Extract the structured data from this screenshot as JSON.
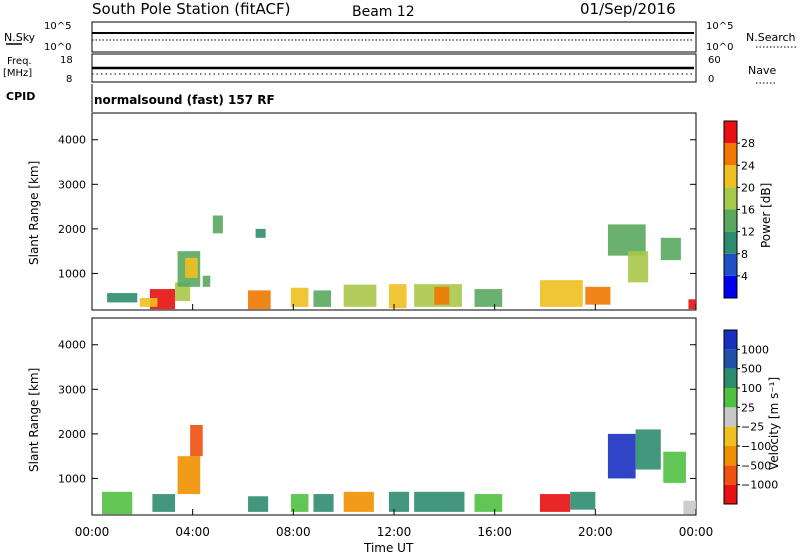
{
  "header": {
    "station_title": "South Pole Station (fitACF)",
    "beam": "Beam 12",
    "date": "01/Sep/2016"
  },
  "top_panels": {
    "nsky_label": "N.Sky",
    "nsky_ticks": [
      "10^5",
      "10^0"
    ],
    "nsearch_label": "N.Search",
    "nsearch_ticks": [
      "10^5",
      "10^0"
    ],
    "freq_label_1": "Freq.",
    "freq_label_2": "[MHz]",
    "freq_ticks": [
      "18",
      "8"
    ],
    "nave_label": "Nave",
    "nave_ticks": [
      "60",
      "0"
    ],
    "cpid_label": "CPID",
    "cpid_text": "normalsound (fast) 157 RF"
  },
  "chart_data": [
    {
      "type": "heatmap",
      "name": "power-panel",
      "ylabel": "Slant Range [km]",
      "yticks": [
        "1000",
        "2000",
        "3000",
        "4000"
      ],
      "ylim": [
        180,
        4600
      ],
      "xticks": [
        "00:00",
        "04:00",
        "08:00",
        "12:00",
        "16:00",
        "20:00",
        "00:00"
      ],
      "xlim_hours": [
        0,
        24
      ],
      "colorbar_label": "Power [dB]",
      "colorbar_ticks": [
        "4",
        "8",
        "12",
        "16",
        "20",
        "24",
        "28"
      ],
      "colorbar_range": [
        0,
        30
      ],
      "colors": [
        "#0000f0",
        "#2050c8",
        "#2e8c6e",
        "#5aa860",
        "#a8c84a",
        "#f0c020",
        "#f07800",
        "#e81010"
      ],
      "cells": [
        [
          2.3,
          3.3,
          200,
          650,
          28
        ],
        [
          1.9,
          2.6,
          250,
          450,
          22
        ],
        [
          3.3,
          3.9,
          380,
          800,
          17
        ],
        [
          3.4,
          4.3,
          700,
          1500,
          14
        ],
        [
          3.7,
          4.2,
          900,
          1350,
          20
        ],
        [
          4.4,
          4.7,
          700,
          950,
          12
        ],
        [
          6.2,
          7.1,
          200,
          620,
          24
        ],
        [
          6.5,
          6.9,
          1800,
          2000,
          10
        ],
        [
          7.9,
          8.6,
          250,
          680,
          20
        ],
        [
          8.8,
          9.5,
          250,
          620,
          14
        ],
        [
          10.0,
          11.3,
          250,
          750,
          18
        ],
        [
          11.8,
          12.5,
          220,
          760,
          20
        ],
        [
          12.8,
          14.7,
          250,
          760,
          15
        ],
        [
          13.6,
          14.2,
          300,
          700,
          26
        ],
        [
          15.2,
          16.3,
          250,
          650,
          12
        ],
        [
          17.8,
          19.5,
          250,
          850,
          20
        ],
        [
          19.6,
          20.6,
          300,
          700,
          24
        ],
        [
          20.5,
          22.0,
          1400,
          2100,
          14
        ],
        [
          21.3,
          22.1,
          800,
          1500,
          17
        ],
        [
          22.6,
          23.4,
          1300,
          1800,
          12
        ],
        [
          23.7,
          24.0,
          200,
          420,
          28
        ],
        [
          0.6,
          1.8,
          350,
          560,
          8
        ],
        [
          4.8,
          5.2,
          1900,
          2300,
          12
        ]
      ]
    },
    {
      "type": "heatmap",
      "name": "velocity-panel",
      "ylabel": "Slant Range [km]",
      "yticks": [
        "1000",
        "2000",
        "3000",
        "4000"
      ],
      "ylim": [
        180,
        4600
      ],
      "xticks": [
        "00:00",
        "04:00",
        "08:00",
        "12:00",
        "16:00",
        "20:00",
        "00:00"
      ],
      "xlim_hours": [
        0,
        24
      ],
      "xlabel": "Time UT",
      "colorbar_label": "Velocity [m s⁻¹]",
      "colorbar_ticks": [
        "1000",
        "500",
        "100",
        "25",
        "−25",
        "−100",
        "−500",
        "−1000"
      ],
      "colors": [
        "#e81010",
        "#f05010",
        "#f09000",
        "#f0c020",
        "#c8c8c8",
        "#50c040",
        "#2e8c6e",
        "#2050a8",
        "#1830c0"
      ],
      "cells": [
        [
          2.4,
          3.3,
          250,
          650,
          0.75
        ],
        [
          3.4,
          4.3,
          650,
          1500,
          0.25
        ],
        [
          3.9,
          4.4,
          1500,
          2200,
          0.2
        ],
        [
          6.2,
          7.0,
          250,
          600,
          0.7
        ],
        [
          7.9,
          8.6,
          250,
          650,
          0.65
        ],
        [
          8.8,
          9.6,
          250,
          650,
          0.7
        ],
        [
          10.0,
          11.2,
          250,
          700,
          0.3
        ],
        [
          11.8,
          12.6,
          250,
          700,
          0.75
        ],
        [
          12.8,
          14.8,
          250,
          700,
          0.72
        ],
        [
          15.2,
          16.3,
          250,
          650,
          0.65
        ],
        [
          17.8,
          19.0,
          250,
          650,
          0.1
        ],
        [
          19.0,
          20.0,
          300,
          700,
          0.7
        ],
        [
          20.5,
          21.6,
          1000,
          2000,
          0.9
        ],
        [
          21.6,
          22.6,
          1200,
          2100,
          0.7
        ],
        [
          22.7,
          23.6,
          900,
          1600,
          0.6
        ],
        [
          0.4,
          1.6,
          200,
          700,
          0.65
        ],
        [
          23.5,
          24.0,
          200,
          500,
          0.55
        ]
      ]
    }
  ]
}
